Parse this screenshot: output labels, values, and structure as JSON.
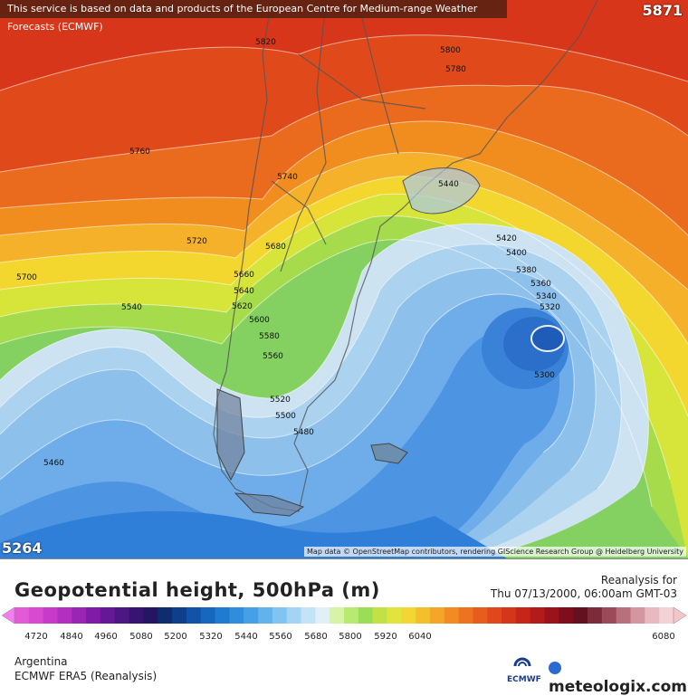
{
  "header": {
    "notice": "This service is based on data and products of the European Centre for Medium-range Weather Forecasts (ECMWF)",
    "max_value": "5871",
    "min_value": "5264"
  },
  "map": {
    "attribution": "Map data © OpenStreetMap contributors, rendering GIScience Research Group @ Heidelberg University",
    "contour_labels": [
      "5820",
      "5800",
      "5780",
      "5760",
      "5740",
      "5720",
      "5700",
      "5680",
      "5660",
      "5640",
      "5620",
      "5600",
      "5580",
      "5560",
      "5540",
      "5520",
      "5500",
      "5480",
      "5460",
      "5440",
      "5420",
      "5400",
      "5380",
      "5360",
      "5340",
      "5320",
      "5300"
    ]
  },
  "legend": {
    "title": "Geopotential height, 500hPa (m)",
    "run_label": "Reanalysis for",
    "run_time": "Thu 07/13/2000, 06:00am GMT-03",
    "region": "Argentina",
    "model": "ECMWF ERA5 (Reanalysis)",
    "ecmwf_logo_text": "ECMWF",
    "brand": "meteologix.com",
    "scale_ticks": [
      "4720",
      "4840",
      "4960",
      "5080",
      "5200",
      "5320",
      "5440",
      "5560",
      "5680",
      "5800",
      "5920",
      "6040",
      "6080"
    ]
  },
  "colors": {
    "ridge": "#d8361a",
    "trough": "#1f6fc2"
  }
}
